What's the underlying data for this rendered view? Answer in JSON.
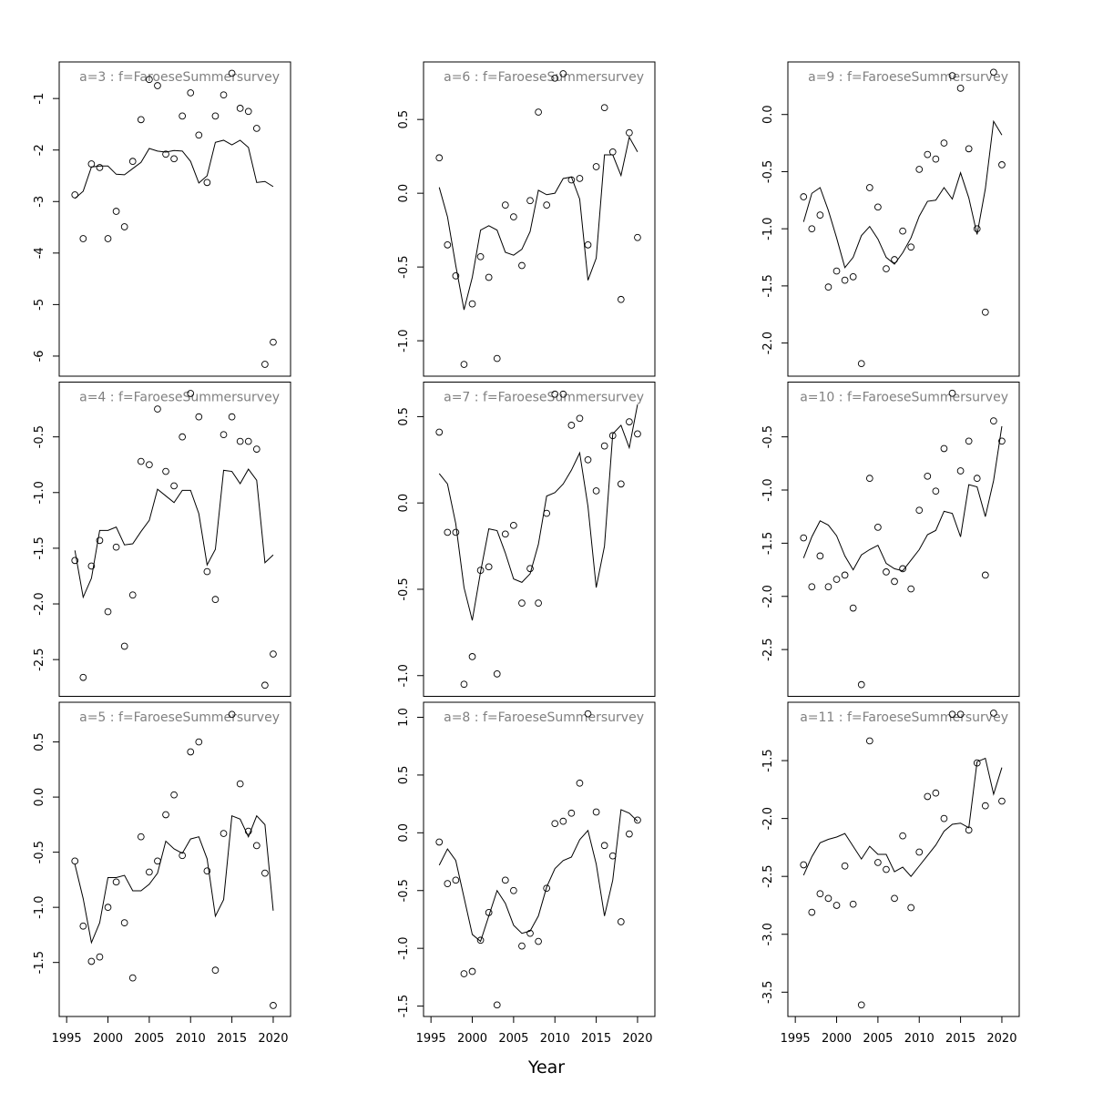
{
  "xlabel": "Year",
  "chart_data": [
    {
      "type": "line",
      "title": "a=3 : f=FaroeseSummersurvey",
      "x": [
        1996,
        1997,
        1998,
        1999,
        2000,
        2001,
        2002,
        2003,
        2004,
        2005,
        2006,
        2007,
        2008,
        2009,
        2010,
        2011,
        2012,
        2013,
        2014,
        2015,
        2016,
        2017,
        2018,
        2019,
        2020
      ],
      "xlim": [
        1994.1,
        2022.1
      ],
      "ylim": [
        -6.39,
        -0.29
      ],
      "yticks": [
        -6,
        -5,
        -4,
        -3,
        -2,
        -1
      ],
      "series": [
        {
          "style": "points",
          "color": "#000000",
          "values": [
            -2.87,
            -3.72,
            -2.27,
            -2.34,
            -3.72,
            -3.19,
            -3.49,
            -2.22,
            -1.41,
            -0.63,
            -0.75,
            -2.08,
            -2.17,
            -1.34,
            -0.89,
            -1.71,
            -2.63,
            -1.34,
            -0.93,
            -0.51,
            -1.19,
            -1.25,
            -1.58,
            -6.16,
            -5.73
          ]
        },
        {
          "style": "line",
          "color": "#000000",
          "values": [
            -2.94,
            -2.8,
            -2.33,
            -2.31,
            -2.31,
            -2.47,
            -2.48,
            -2.36,
            -2.24,
            -1.97,
            -2.02,
            -2.04,
            -2.01,
            -2.02,
            -2.22,
            -2.64,
            -2.5,
            -1.85,
            -1.81,
            -1.9,
            -1.81,
            -1.95,
            -2.63,
            -2.61,
            -2.71
          ]
        }
      ]
    },
    {
      "type": "line",
      "title": "a=4 : f=FaroeseSummersurvey",
      "x": [
        1996,
        1997,
        1998,
        1999,
        2000,
        2001,
        2002,
        2003,
        2004,
        2005,
        2006,
        2007,
        2008,
        2009,
        2010,
        2011,
        2012,
        2013,
        2014,
        2015,
        2016,
        2017,
        2018,
        2019,
        2020
      ],
      "xlim": [
        1994.1,
        2022.1
      ],
      "ylim": [
        -2.83,
        -0.008
      ],
      "yticks": [
        -2.5,
        {
          "value": -2,
          "label": "-2.0"
        },
        -1.5,
        {
          "value": -1,
          "label": "-1.0"
        },
        -0.5
      ],
      "series": [
        {
          "style": "points",
          "color": "#000000",
          "values": [
            -1.61,
            -2.66,
            -1.66,
            -1.43,
            -2.07,
            -1.49,
            -2.38,
            -1.92,
            -0.72,
            -0.75,
            -0.25,
            -0.81,
            -0.94,
            -0.5,
            -0.11,
            -0.32,
            -1.71,
            -1.96,
            -0.48,
            -0.32,
            -0.54,
            -0.54,
            -0.61,
            -2.73,
            -2.45
          ]
        },
        {
          "style": "line",
          "color": "#000000",
          "values": [
            -1.52,
            -1.94,
            -1.77,
            -1.34,
            -1.34,
            -1.31,
            -1.47,
            -1.46,
            -1.35,
            -1.25,
            -0.97,
            -1.03,
            -1.09,
            -0.98,
            -0.98,
            -1.19,
            -1.65,
            -1.51,
            -0.8,
            -0.81,
            -0.92,
            -0.79,
            -0.89,
            -1.63,
            -1.56
          ]
        }
      ]
    },
    {
      "type": "line",
      "title": "a=5 : f=FaroeseSummersurvey",
      "x": [
        1996,
        1997,
        1998,
        1999,
        2000,
        2001,
        2002,
        2003,
        2004,
        2005,
        2006,
        2007,
        2008,
        2009,
        2010,
        2011,
        2012,
        2013,
        2014,
        2015,
        2016,
        2017,
        2018,
        2019,
        2020
      ],
      "xlim": [
        1994.1,
        2022.1
      ],
      "ylim": [
        -1.99,
        0.86
      ],
      "yticks": [
        -1.5,
        {
          "value": -1,
          "label": "-1.0"
        },
        -0.5,
        {
          "value": 0,
          "label": "0.0"
        },
        0.5
      ],
      "xticks": [
        1995,
        2000,
        2005,
        2010,
        2015,
        2020
      ],
      "series": [
        {
          "style": "points",
          "color": "#000000",
          "values": [
            -0.58,
            -1.17,
            -1.49,
            -1.45,
            -1.0,
            -0.77,
            -1.14,
            -1.64,
            -0.36,
            -0.68,
            -0.58,
            -0.16,
            0.02,
            -0.53,
            0.41,
            0.5,
            -0.67,
            -1.57,
            -0.33,
            0.75,
            0.12,
            -0.31,
            -0.44,
            -0.69,
            -1.89
          ]
        },
        {
          "style": "line",
          "color": "#000000",
          "values": [
            -0.61,
            -0.92,
            -1.32,
            -1.14,
            -0.73,
            -0.73,
            -0.71,
            -0.85,
            -0.85,
            -0.79,
            -0.69,
            -0.4,
            -0.47,
            -0.51,
            -0.38,
            -0.36,
            -0.56,
            -1.08,
            -0.93,
            -0.17,
            -0.2,
            -0.36,
            -0.17,
            -0.25,
            -1.03
          ]
        }
      ]
    },
    {
      "type": "line",
      "title": "a=6 : f=FaroeseSummersurvey",
      "x": [
        1996,
        1997,
        1998,
        1999,
        2000,
        2001,
        2002,
        2003,
        2004,
        2005,
        2006,
        2007,
        2008,
        2009,
        2010,
        2011,
        2012,
        2013,
        2014,
        2015,
        2016,
        2017,
        2018,
        2019,
        2020
      ],
      "xlim": [
        1994.1,
        2022.1
      ],
      "ylim": [
        -1.24,
        0.89
      ],
      "yticks": [
        {
          "value": -1,
          "label": "-1.0"
        },
        -0.5,
        {
          "value": 0,
          "label": "0.0"
        },
        0.5
      ],
      "series": [
        {
          "style": "points",
          "color": "#000000",
          "values": [
            0.24,
            -0.35,
            -0.56,
            -1.16,
            -0.75,
            -0.43,
            -0.57,
            -1.12,
            -0.08,
            -0.16,
            -0.49,
            -0.05,
            0.55,
            -0.08,
            0.78,
            0.81,
            0.09,
            0.1,
            -0.35,
            0.18,
            0.58,
            0.28,
            -0.72,
            0.41,
            -0.3
          ]
        },
        {
          "style": "line",
          "color": "#000000",
          "values": [
            0.04,
            -0.16,
            -0.49,
            -0.79,
            -0.57,
            -0.25,
            -0.22,
            -0.25,
            -0.4,
            -0.42,
            -0.38,
            -0.26,
            0.02,
            -0.01,
            0.0,
            0.1,
            0.11,
            -0.04,
            -0.59,
            -0.44,
            0.26,
            0.26,
            0.12,
            0.38,
            0.28
          ]
        }
      ]
    },
    {
      "type": "line",
      "title": "a=7 : f=FaroeseSummersurvey",
      "x": [
        1996,
        1997,
        1998,
        1999,
        2000,
        2001,
        2002,
        2003,
        2004,
        2005,
        2006,
        2007,
        2008,
        2009,
        2010,
        2011,
        2012,
        2013,
        2014,
        2015,
        2016,
        2017,
        2018,
        2019,
        2020
      ],
      "xlim": [
        1994.1,
        2022.1
      ],
      "ylim": [
        -1.12,
        0.7
      ],
      "yticks": [
        {
          "value": -1,
          "label": "-1.0"
        },
        -0.5,
        {
          "value": 0,
          "label": "0.0"
        },
        0.5
      ],
      "series": [
        {
          "style": "points",
          "color": "#000000",
          "values": [
            0.41,
            -0.17,
            -0.17,
            -1.05,
            -0.89,
            -0.39,
            -0.37,
            -0.99,
            -0.18,
            -0.13,
            -0.58,
            -0.38,
            -0.58,
            -0.06,
            0.63,
            0.63,
            0.45,
            0.49,
            0.25,
            0.07,
            0.33,
            0.39,
            0.11,
            0.47,
            0.4
          ]
        },
        {
          "style": "line",
          "color": "#000000",
          "values": [
            0.17,
            0.11,
            -0.12,
            -0.49,
            -0.68,
            -0.4,
            -0.15,
            -0.16,
            -0.29,
            -0.44,
            -0.46,
            -0.41,
            -0.24,
            0.04,
            0.06,
            0.11,
            0.19,
            0.29,
            -0.02,
            -0.49,
            -0.25,
            0.4,
            0.45,
            0.32,
            0.57
          ]
        }
      ]
    },
    {
      "type": "line",
      "title": "a=8 : f=FaroeseSummersurvey",
      "x": [
        1996,
        1997,
        1998,
        1999,
        2000,
        2001,
        2002,
        2003,
        2004,
        2005,
        2006,
        2007,
        2008,
        2009,
        2010,
        2011,
        2012,
        2013,
        2014,
        2015,
        2016,
        2017,
        2018,
        2019,
        2020
      ],
      "xlim": [
        1994.1,
        2022.1
      ],
      "ylim": [
        -1.59,
        1.13
      ],
      "yticks": [
        -1.5,
        {
          "value": -1,
          "label": "-1.0"
        },
        -0.5,
        {
          "value": 0,
          "label": "0.0"
        },
        0.5,
        {
          "value": 1,
          "label": "1.0"
        }
      ],
      "xticks": [
        1995,
        2000,
        2005,
        2010,
        2015,
        2020
      ],
      "series": [
        {
          "style": "points",
          "color": "#000000",
          "values": [
            -0.08,
            -0.44,
            -0.41,
            -1.22,
            -1.2,
            -0.93,
            -0.69,
            -1.49,
            -0.41,
            -0.5,
            -0.98,
            -0.87,
            -0.94,
            -0.48,
            0.08,
            0.1,
            0.17,
            0.43,
            1.03,
            0.18,
            -0.11,
            -0.2,
            -0.77,
            -0.01,
            0.11
          ]
        },
        {
          "style": "line",
          "color": "#000000",
          "values": [
            -0.28,
            -0.14,
            -0.24,
            -0.56,
            -0.88,
            -0.94,
            -0.72,
            -0.5,
            -0.61,
            -0.8,
            -0.87,
            -0.85,
            -0.72,
            -0.47,
            -0.31,
            -0.24,
            -0.21,
            -0.06,
            0.02,
            -0.27,
            -0.72,
            -0.41,
            0.2,
            0.17,
            0.1
          ]
        }
      ]
    },
    {
      "type": "line",
      "title": "a=9 : f=FaroeseSummersurvey",
      "x": [
        1996,
        1997,
        1998,
        1999,
        2000,
        2001,
        2002,
        2003,
        2004,
        2005,
        2006,
        2007,
        2008,
        2009,
        2010,
        2011,
        2012,
        2013,
        2014,
        2015,
        2016,
        2017,
        2018,
        2019,
        2020
      ],
      "xlim": [
        1994.1,
        2022.1
      ],
      "ylim": [
        -2.29,
        0.46
      ],
      "yticks": [
        {
          "value": -2,
          "label": "-2.0"
        },
        -1.5,
        {
          "value": -1,
          "label": "-1.0"
        },
        -0.5,
        {
          "value": 0,
          "label": "0.0"
        }
      ],
      "series": [
        {
          "style": "points",
          "color": "#000000",
          "values": [
            -0.72,
            -1.0,
            -0.88,
            -1.51,
            -1.37,
            -1.45,
            -1.42,
            -2.18,
            -0.64,
            -0.81,
            -1.35,
            -1.27,
            -1.02,
            -1.16,
            -0.48,
            -0.35,
            -0.39,
            -0.25,
            0.34,
            0.23,
            -0.3,
            -1.0,
            -1.73,
            0.37,
            -0.44
          ]
        },
        {
          "style": "line",
          "color": "#000000",
          "values": [
            -0.94,
            -0.69,
            -0.64,
            -0.84,
            -1.08,
            -1.34,
            -1.25,
            -1.06,
            -0.98,
            -1.09,
            -1.25,
            -1.31,
            -1.21,
            -1.08,
            -0.89,
            -0.76,
            -0.75,
            -0.64,
            -0.74,
            -0.51,
            -0.73,
            -1.05,
            -0.65,
            -0.06,
            -0.18
          ]
        }
      ]
    },
    {
      "type": "line",
      "title": "a=10 : f=FaroeseSummersurvey",
      "x": [
        1996,
        1997,
        1998,
        1999,
        2000,
        2001,
        2002,
        2003,
        2004,
        2005,
        2006,
        2007,
        2008,
        2009,
        2010,
        2011,
        2012,
        2013,
        2014,
        2015,
        2016,
        2017,
        2018,
        2019,
        2020
      ],
      "xlim": [
        1994.1,
        2022.1
      ],
      "ylim": [
        -2.94,
        0.015
      ],
      "yticks": [
        -2.5,
        {
          "value": -2,
          "label": "-2.0"
        },
        -1.5,
        {
          "value": -1,
          "label": "-1.0"
        },
        -0.5
      ],
      "series": [
        {
          "style": "points",
          "color": "#000000",
          "values": [
            -1.45,
            -1.91,
            -1.62,
            -1.91,
            -1.84,
            -1.8,
            -2.11,
            -2.83,
            -0.89,
            -1.35,
            -1.77,
            -1.86,
            -1.74,
            -1.93,
            -1.19,
            -0.87,
            -1.01,
            -0.61,
            -0.09,
            -0.82,
            -0.54,
            -0.89,
            -1.8,
            -0.35,
            -0.54
          ]
        },
        {
          "style": "line",
          "color": "#000000",
          "values": [
            -1.64,
            -1.44,
            -1.29,
            -1.33,
            -1.43,
            -1.62,
            -1.75,
            -1.61,
            -1.56,
            -1.52,
            -1.69,
            -1.74,
            -1.76,
            -1.66,
            -1.56,
            -1.42,
            -1.38,
            -1.2,
            -1.22,
            -1.44,
            -0.95,
            -0.97,
            -1.25,
            -0.91,
            -0.4
          ]
        }
      ]
    },
    {
      "type": "line",
      "title": "a=11 : f=FaroeseSummersurvey",
      "x": [
        1996,
        1997,
        1998,
        1999,
        2000,
        2001,
        2002,
        2003,
        2004,
        2005,
        2006,
        2007,
        2008,
        2009,
        2010,
        2011,
        2012,
        2013,
        2014,
        2015,
        2016,
        2017,
        2018,
        2019,
        2020
      ],
      "xlim": [
        1994.1,
        2022.1
      ],
      "ylim": [
        -3.71,
        -0.996
      ],
      "yticks": [
        -3.5,
        {
          "value": -3,
          "label": "-3.0"
        },
        -2.5,
        {
          "value": -2,
          "label": "-2.0"
        },
        -1.5
      ],
      "xticks": [
        1995,
        2000,
        2005,
        2010,
        2015,
        2020
      ],
      "series": [
        {
          "style": "points",
          "color": "#000000",
          "values": [
            -2.4,
            -2.81,
            -2.65,
            -2.69,
            -2.75,
            -2.41,
            -2.74,
            -3.61,
            -1.33,
            -2.38,
            -2.44,
            -2.69,
            -2.15,
            -2.77,
            -2.29,
            -1.81,
            -1.78,
            -2.0,
            -1.1,
            -1.1,
            -2.1,
            -1.52,
            -1.89,
            -1.09,
            -1.85
          ]
        },
        {
          "style": "line",
          "color": "#000000",
          "values": [
            -2.49,
            -2.33,
            -2.21,
            -2.18,
            -2.16,
            -2.13,
            -2.24,
            -2.35,
            -2.24,
            -2.31,
            -2.31,
            -2.46,
            -2.42,
            -2.5,
            -2.41,
            -2.32,
            -2.23,
            -2.11,
            -2.05,
            -2.04,
            -2.08,
            -1.51,
            -1.48,
            -1.79,
            -1.56
          ]
        }
      ]
    }
  ]
}
